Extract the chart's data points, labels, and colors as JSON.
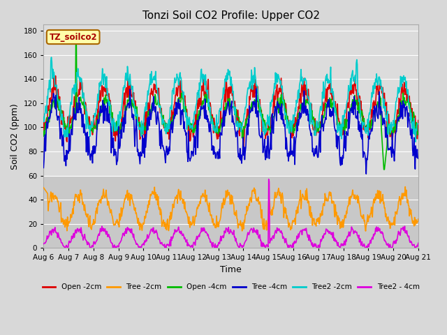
{
  "title": "Tonzi Soil CO2 Profile: Upper CO2",
  "xlabel": "Time",
  "ylabel": "Soil CO2 (ppm)",
  "annotation": "TZ_soilco2",
  "ylim": [
    0,
    185
  ],
  "yticks": [
    0,
    20,
    40,
    60,
    80,
    100,
    120,
    140,
    160,
    180
  ],
  "xtick_labels": [
    "Aug 6",
    "Aug 7",
    "Aug 8",
    "Aug 9",
    "Aug 10",
    "Aug 11",
    "Aug 12",
    "Aug 13",
    "Aug 14",
    "Aug 15",
    "Aug 16",
    "Aug 17",
    "Aug 18",
    "Aug 19",
    "Aug 20",
    "Aug 21"
  ],
  "legend": [
    {
      "label": "Open -2cm",
      "color": "#dd0000"
    },
    {
      "label": "Tree -2cm",
      "color": "#ff9900"
    },
    {
      "label": "Open -4cm",
      "color": "#00bb00"
    },
    {
      "label": "Tree -4cm",
      "color": "#0000cc"
    },
    {
      "label": "Tree2 -2cm",
      "color": "#00cccc"
    },
    {
      "label": "Tree2 - 4cm",
      "color": "#dd00dd"
    }
  ],
  "bg_upper": "#dcdcdc",
  "bg_lower": "#c8c8c8",
  "plot_bg": "#e8e8e8",
  "n_days": 15,
  "pts_per_day": 48,
  "figsize": [
    6.4,
    4.8
  ],
  "dpi": 100
}
